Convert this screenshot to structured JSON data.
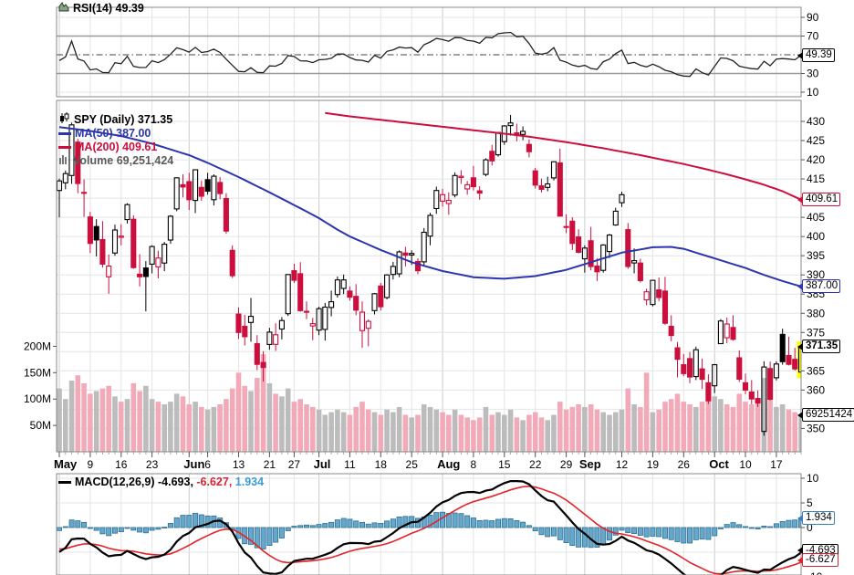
{
  "legends": {
    "rsi": "RSI(14) 49.39",
    "symbol": "SPY (Daily) 371.35",
    "ma50": "MA(50) 387.00",
    "ma200": "MA(200) 409.61",
    "volume": "Volume 69,251,424",
    "macd_parts": [
      {
        "text": "MACD(12,26,9) -4.693,",
        "color": "#000000"
      },
      {
        "text": " -6.627,",
        "color": "#d62433"
      },
      {
        "text": " 1.934",
        "color": "#3a9bd5"
      }
    ]
  },
  "callouts": {
    "rsi": "49.39",
    "ma200": "409.61",
    "ma50": "387.00",
    "close": "371.35",
    "volume": "69251424",
    "macd": "-4.693",
    "signal": "-6.627",
    "hist": "1.934"
  },
  "axes": {
    "rsi_ticks": [
      90,
      70,
      30,
      10
    ],
    "price_ticks": [
      430,
      425,
      420,
      415,
      405,
      400,
      395,
      390,
      385,
      380,
      375,
      365,
      360,
      350
    ],
    "volume_ticks": [
      {
        "v": 200,
        "t": "200M"
      },
      {
        "v": 150,
        "t": "150M"
      },
      {
        "v": 100,
        "t": "100M"
      },
      {
        "v": 50,
        "t": "50M"
      }
    ],
    "macd_ticks": [
      {
        "v": 10,
        "t": "10"
      },
      {
        "v": 5,
        "t": "5"
      },
      {
        "v": 0,
        "t": "0"
      },
      {
        "v": -10,
        "t": "-10"
      }
    ]
  },
  "xaxis": {
    "ticks": [
      {
        "t": "May",
        "i": 0,
        "month": true
      },
      {
        "t": "9",
        "i": 5
      },
      {
        "t": "16",
        "i": 10
      },
      {
        "t": "23",
        "i": 15
      },
      {
        "t": "Jun",
        "i": 21,
        "month": true
      },
      {
        "t": "6",
        "i": 24
      },
      {
        "t": "13",
        "i": 29
      },
      {
        "t": "21",
        "i": 34
      },
      {
        "t": "27",
        "i": 38
      },
      {
        "t": "Jul",
        "i": 42,
        "month": true
      },
      {
        "t": "11",
        "i": 47
      },
      {
        "t": "18",
        "i": 52
      },
      {
        "t": "25",
        "i": 57
      },
      {
        "t": "Aug",
        "i": 62,
        "month": true
      },
      {
        "t": "8",
        "i": 67
      },
      {
        "t": "15",
        "i": 72
      },
      {
        "t": "22",
        "i": 77
      },
      {
        "t": "29",
        "i": 82
      },
      {
        "t": "Sep",
        "i": 85,
        "month": true
      },
      {
        "t": "12",
        "i": 91
      },
      {
        "t": "19",
        "i": 96
      },
      {
        "t": "26",
        "i": 101
      },
      {
        "t": "Oct",
        "i": 106,
        "month": true
      },
      {
        "t": "10",
        "i": 111
      },
      {
        "t": "17",
        "i": 116
      }
    ]
  },
  "colors": {
    "up": "#000000",
    "down": "#cc0e3d",
    "ma50": "#2d35ad",
    "ma200": "#cc0e3d",
    "vol_up": "#bcbcbc",
    "vol_down": "#f2aab9",
    "hist_fill": "#66a8cb",
    "hist_stroke": "#2e6f94",
    "macd_line": "#000000",
    "signal_line": "#e32428",
    "rsi_line": "#222222",
    "grid": "#e4e4e4",
    "grid_month": "#cbcbcb",
    "frame": "#888888",
    "highlight": "#ffff00"
  },
  "chart_data": {
    "type": "candlestick",
    "symbol": "SPY",
    "timeframe": "Daily",
    "indicators": {
      "rsi_period": 14,
      "macd_params": [
        12,
        26,
        9
      ],
      "ma_periods": [
        50,
        200
      ]
    },
    "price_axis": {
      "min": 350,
      "max": 430,
      "step": 5
    },
    "rsi_axis": {
      "lines": [
        70,
        30
      ],
      "midline": 50
    },
    "macd_axis": {
      "min": -10,
      "max": 10
    },
    "last": {
      "close": 371.35,
      "rsi": 49.39,
      "ma50": 387.0,
      "ma200": 409.61,
      "volume_m": 69.25,
      "volume_text": "69,251,424",
      "macd": -4.693,
      "signal": -6.627,
      "hist": 1.934
    },
    "dates": [
      "5/2",
      "5/3",
      "5/4",
      "5/5",
      "5/6",
      "5/9",
      "5/10",
      "5/11",
      "5/12",
      "5/13",
      "5/16",
      "5/17",
      "5/18",
      "5/19",
      "5/20",
      "5/23",
      "5/24",
      "5/25",
      "5/26",
      "5/27",
      "5/31",
      "6/1",
      "6/2",
      "6/3",
      "6/6",
      "6/7",
      "6/8",
      "6/9",
      "6/10",
      "6/13",
      "6/14",
      "6/15",
      "6/16",
      "6/17",
      "6/21",
      "6/22",
      "6/23",
      "6/24",
      "6/27",
      "6/28",
      "6/29",
      "6/30",
      "7/1",
      "7/5",
      "7/6",
      "7/7",
      "7/8",
      "7/11",
      "7/12",
      "7/13",
      "7/14",
      "7/15",
      "7/18",
      "7/19",
      "7/20",
      "7/21",
      "7/22",
      "7/25",
      "7/26",
      "7/27",
      "7/28",
      "7/29",
      "8/1",
      "8/2",
      "8/3",
      "8/4",
      "8/5",
      "8/8",
      "8/9",
      "8/10",
      "8/11",
      "8/12",
      "8/15",
      "8/16",
      "8/17",
      "8/18",
      "8/19",
      "8/22",
      "8/23",
      "8/24",
      "8/25",
      "8/26",
      "8/29",
      "8/30",
      "8/31",
      "9/1",
      "9/2",
      "9/6",
      "9/7",
      "9/8",
      "9/9",
      "9/12",
      "9/13",
      "9/14",
      "9/15",
      "9/16",
      "9/19",
      "9/20",
      "9/21",
      "9/22",
      "9/23",
      "9/26",
      "9/27",
      "9/28",
      "9/29",
      "9/30",
      "10/3",
      "10/4",
      "10/5",
      "10/6",
      "10/7",
      "10/10",
      "10/11",
      "10/12",
      "10/13",
      "10/14",
      "10/17",
      "10/18",
      "10/19",
      "10/20",
      "10/21"
    ],
    "ohlc": [
      [
        412.0,
        415.1,
        405.0,
        414.5
      ],
      [
        414.0,
        417.2,
        412.3,
        416.4
      ],
      [
        415.9,
        429.7,
        413.7,
        429.1
      ],
      [
        424.6,
        425.4,
        411.3,
        413.8
      ],
      [
        411.5,
        414.9,
        405.1,
        411.3
      ],
      [
        405.1,
        406.4,
        395.7,
        398.2
      ],
      [
        402.6,
        404.5,
        394.8,
        399.1
      ],
      [
        399.2,
        404.0,
        391.9,
        392.8
      ],
      [
        389.5,
        395.3,
        385.1,
        392.3
      ],
      [
        395.7,
        403.1,
        395.0,
        401.7
      ],
      [
        399.8,
        403.2,
        397.7,
        400.1
      ],
      [
        404.4,
        408.7,
        403.4,
        408.3
      ],
      [
        404.5,
        405.5,
        391.6,
        391.9
      ],
      [
        390.2,
        395.4,
        387.0,
        389.5
      ],
      [
        391.8,
        393.6,
        380.5,
        389.6
      ],
      [
        392.8,
        397.7,
        390.4,
        397.4
      ],
      [
        392.1,
        396.3,
        389.1,
        394.4
      ],
      [
        393.1,
        398.6,
        391.0,
        398.0
      ],
      [
        399.1,
        405.6,
        398.1,
        405.3
      ],
      [
        407.2,
        415.4,
        406.6,
        415.3
      ],
      [
        413.5,
        416.2,
        410.2,
        412.9
      ],
      [
        414.3,
        416.6,
        406.9,
        409.6
      ],
      [
        409.4,
        417.4,
        406.1,
        417.4
      ],
      [
        412.8,
        414.6,
        409.3,
        410.5
      ],
      [
        414.8,
        416.6,
        410.9,
        411.8
      ],
      [
        409.6,
        416.2,
        408.1,
        415.7
      ],
      [
        414.1,
        415.5,
        409.7,
        411.2
      ],
      [
        409.9,
        411.3,
        400.7,
        401.4
      ],
      [
        396.4,
        397.7,
        389.2,
        389.8
      ],
      [
        379.8,
        381.5,
        373.3,
        375.0
      ],
      [
        376.6,
        379.6,
        371.6,
        373.9
      ],
      [
        377.6,
        384.0,
        372.6,
        379.2
      ],
      [
        372.1,
        374.3,
        365.2,
        366.7
      ],
      [
        367.2,
        370.1,
        362.2,
        365.9
      ],
      [
        371.9,
        376.2,
        370.5,
        375.1
      ],
      [
        371.9,
        377.4,
        370.2,
        374.4
      ],
      [
        375.9,
        379.0,
        373.2,
        378.1
      ],
      [
        379.9,
        390.1,
        379.3,
        390.1
      ],
      [
        391.1,
        392.9,
        387.9,
        388.6
      ],
      [
        390.3,
        393.3,
        380.4,
        380.7
      ],
      [
        380.5,
        383.1,
        378.5,
        380.3
      ],
      [
        376.7,
        378.8,
        373.0,
        377.3
      ],
      [
        375.6,
        381.7,
        374.3,
        381.2
      ],
      [
        375.8,
        382.7,
        372.9,
        381.6
      ],
      [
        381.5,
        385.9,
        379.2,
        383.0
      ],
      [
        384.9,
        389.6,
        384.1,
        388.7
      ],
      [
        386.5,
        390.1,
        385.0,
        388.7
      ],
      [
        385.8,
        387.0,
        383.3,
        384.2
      ],
      [
        384.4,
        387.6,
        379.5,
        380.8
      ],
      [
        375.5,
        383.1,
        371.0,
        380.3
      ],
      [
        376.1,
        378.4,
        371.4,
        377.9
      ],
      [
        380.7,
        385.3,
        379.7,
        385.1
      ],
      [
        387.1,
        387.9,
        380.7,
        381.7
      ],
      [
        384.1,
        390.2,
        383.6,
        390.0
      ],
      [
        390.1,
        393.4,
        388.8,
        392.2
      ],
      [
        390.3,
        396.4,
        389.4,
        396.0
      ],
      [
        395.7,
        397.3,
        392.2,
        395.1
      ],
      [
        395.2,
        396.4,
        392.6,
        395.6
      ],
      [
        393.5,
        394.3,
        390.2,
        391.1
      ],
      [
        393.4,
        402.2,
        392.4,
        401.1
      ],
      [
        400.1,
        406.2,
        397.7,
        405.5
      ],
      [
        407.3,
        413.0,
        405.9,
        412.0
      ],
      [
        409.2,
        412.4,
        407.8,
        410.9
      ],
      [
        408.6,
        411.5,
        405.7,
        409.4
      ],
      [
        410.8,
        416.7,
        410.2,
        415.9
      ],
      [
        415.4,
        417.3,
        413.7,
        415.7
      ],
      [
        412.4,
        414.5,
        410.9,
        413.5
      ],
      [
        415.3,
        418.4,
        412.0,
        413.0
      ],
      [
        411.9,
        413.1,
        409.6,
        411.3
      ],
      [
        416.2,
        420.4,
        415.7,
        420.0
      ],
      [
        422.2,
        423.9,
        418.5,
        419.7
      ],
      [
        421.3,
        427.2,
        420.8,
        427.1
      ],
      [
        424.7,
        429.0,
        423.9,
        428.8
      ],
      [
        428.9,
        431.7,
        426.3,
        429.6
      ],
      [
        427.0,
        429.4,
        424.8,
        426.6
      ],
      [
        426.6,
        428.7,
        425.1,
        427.4
      ],
      [
        424.0,
        425.3,
        420.6,
        422.1
      ],
      [
        417.1,
        417.9,
        412.5,
        413.4
      ],
      [
        413.2,
        415.1,
        411.5,
        412.3
      ],
      [
        412.8,
        415.6,
        411.8,
        413.7
      ],
      [
        415.3,
        419.6,
        414.6,
        419.5
      ],
      [
        419.2,
        422.9,
        405.3,
        405.3
      ],
      [
        402.4,
        405.8,
        400.9,
        402.6
      ],
      [
        404.0,
        405.0,
        396.5,
        398.2
      ],
      [
        399.9,
        401.9,
        395.6,
        395.9
      ],
      [
        394.2,
        397.7,
        390.6,
        397.0
      ],
      [
        398.9,
        402.5,
        391.2,
        392.2
      ],
      [
        392.3,
        394.3,
        388.4,
        390.8
      ],
      [
        391.2,
        398.0,
        390.6,
        397.8
      ],
      [
        396.1,
        400.7,
        394.4,
        400.4
      ],
      [
        403.0,
        407.5,
        402.8,
        406.6
      ],
      [
        408.8,
        411.7,
        407.7,
        410.9
      ],
      [
        401.8,
        403.5,
        391.6,
        392.2
      ],
      [
        393.1,
        396.9,
        390.4,
        393.7
      ],
      [
        393.1,
        394.2,
        388.0,
        388.5
      ],
      [
        383.5,
        386.4,
        382.1,
        385.6
      ],
      [
        382.3,
        388.6,
        381.8,
        388.6
      ],
      [
        386.1,
        389.3,
        383.1,
        384.1
      ],
      [
        385.8,
        389.5,
        377.0,
        377.4
      ],
      [
        376.6,
        379.5,
        372.7,
        374.2
      ],
      [
        371.0,
        372.5,
        363.3,
        368.0
      ],
      [
        366.6,
        369.4,
        363.6,
        364.3
      ],
      [
        368.2,
        369.9,
        361.8,
        363.4
      ],
      [
        363.5,
        371.3,
        362.6,
        370.5
      ],
      [
        365.5,
        368.2,
        360.3,
        362.8
      ],
      [
        361.9,
        364.1,
        356.4,
        357.2
      ],
      [
        361.1,
        366.8,
        359.2,
        366.6
      ],
      [
        372.1,
        378.5,
        372.0,
        378.0
      ],
      [
        373.6,
        378.9,
        372.2,
        377.2
      ],
      [
        376.3,
        379.5,
        372.9,
        373.2
      ],
      [
        368.4,
        370.3,
        362.1,
        362.8
      ],
      [
        361.9,
        364.3,
        358.9,
        360.0
      ],
      [
        359.5,
        362.6,
        356.3,
        357.7
      ],
      [
        357.8,
        359.9,
        355.6,
        356.6
      ],
      [
        349.2,
        367.5,
        348.1,
        366.0
      ],
      [
        365.6,
        367.4,
        357.3,
        357.6
      ],
      [
        363.2,
        367.5,
        362.5,
        366.8
      ],
      [
        374.5,
        376.0,
        366.6,
        367.4
      ],
      [
        369.0,
        373.9,
        366.4,
        366.7
      ],
      [
        368.0,
        371.0,
        365.1,
        365.5
      ],
      [
        364.7,
        372.0,
        363.8,
        371.35
      ]
    ],
    "volume_m": [
      120,
      100,
      135,
      145,
      130,
      110,
      115,
      120,
      125,
      105,
      95,
      100,
      130,
      115,
      125,
      100,
      95,
      90,
      95,
      110,
      105,
      90,
      95,
      85,
      80,
      85,
      90,
      100,
      120,
      150,
      125,
      115,
      140,
      185,
      130,
      110,
      105,
      120,
      95,
      100,
      90,
      85,
      80,
      70,
      75,
      80,
      75,
      70,
      85,
      95,
      80,
      75,
      70,
      80,
      75,
      85,
      70,
      65,
      70,
      90,
      85,
      80,
      75,
      70,
      80,
      70,
      65,
      60,
      65,
      85,
      70,
      75,
      70,
      80,
      65,
      60,
      70,
      75,
      65,
      60,
      70,
      95,
      80,
      85,
      90,
      85,
      90,
      80,
      75,
      70,
      75,
      80,
      120,
      90,
      85,
      150,
      75,
      80,
      95,
      100,
      110,
      95,
      90,
      85,
      95,
      115,
      105,
      100,
      90,
      85,
      110,
      95,
      90,
      95,
      140,
      100,
      85,
      90,
      80,
      75,
      69.25
    ],
    "ma50_anchors": [
      [
        0,
        428.5
      ],
      [
        5,
        427.5
      ],
      [
        10,
        426.2
      ],
      [
        15,
        424.2
      ],
      [
        21,
        421.2
      ],
      [
        24,
        419.2
      ],
      [
        29,
        415.5
      ],
      [
        34,
        411.5
      ],
      [
        38,
        408.2
      ],
      [
        42,
        404.8
      ],
      [
        45,
        401.8
      ],
      [
        47,
        400.0
      ],
      [
        52,
        396.5
      ],
      [
        57,
        393.3
      ],
      [
        62,
        391.0
      ],
      [
        67,
        389.4
      ],
      [
        72,
        389.0
      ],
      [
        77,
        389.7
      ],
      [
        82,
        391.3
      ],
      [
        85,
        392.8
      ],
      [
        91,
        395.8
      ],
      [
        96,
        397.2
      ],
      [
        99,
        397.3
      ],
      [
        101,
        396.8
      ],
      [
        105,
        394.8
      ],
      [
        108,
        393.3
      ],
      [
        111,
        391.8
      ],
      [
        114,
        390.0
      ],
      [
        117,
        388.4
      ],
      [
        120,
        387.0
      ]
    ],
    "ma200_anchors": [
      [
        43,
        432.2
      ],
      [
        47,
        431.3
      ],
      [
        52,
        430.4
      ],
      [
        57,
        429.5
      ],
      [
        62,
        428.6
      ],
      [
        67,
        427.7
      ],
      [
        72,
        426.8
      ],
      [
        77,
        425.8
      ],
      [
        82,
        424.6
      ],
      [
        85,
        423.8
      ],
      [
        88,
        423.0
      ],
      [
        91,
        422.1
      ],
      [
        94,
        421.2
      ],
      [
        97,
        420.2
      ],
      [
        101,
        418.9
      ],
      [
        105,
        417.4
      ],
      [
        108,
        416.2
      ],
      [
        111,
        414.9
      ],
      [
        114,
        413.5
      ],
      [
        117,
        411.8
      ],
      [
        120,
        409.61
      ]
    ],
    "selected_index": 120
  }
}
